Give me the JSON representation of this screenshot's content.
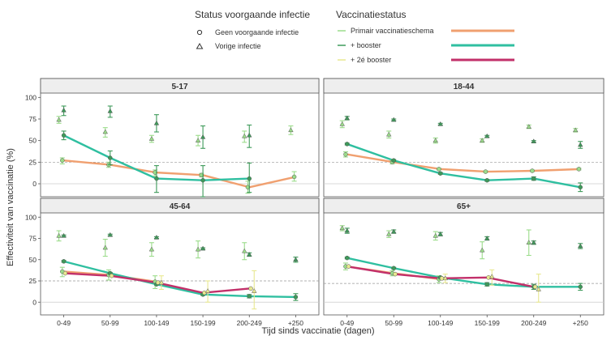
{
  "legend": {
    "status_title": "Status voorgaande infectie",
    "status_items": [
      {
        "label": "Geen voorgaande infectie",
        "symbol": "circle"
      },
      {
        "label": "Vorige infectie",
        "symbol": "triangle"
      }
    ],
    "vacc_title": "Vaccinatiestatus",
    "vacc_items": [
      {
        "label": "Primair vaccinatieschema",
        "dot_color": "#9bdc8a",
        "line_color": "#f0a070"
      },
      {
        "label": "+ booster",
        "dot_color": "#3e9a5a",
        "line_color": "#2fbfa0"
      },
      {
        "label": "+ 2é booster",
        "dot_color": "#e8e890",
        "line_color": "#c2306a"
      }
    ]
  },
  "chart_data": {
    "type": "line",
    "ylabel": "Effectiviteit van vaccinatie (%)",
    "xlabel": "Tijd sinds vaccinatie (dagen)",
    "categories": [
      "0-49",
      "50-99",
      "100-149",
      "150-199",
      "200-249",
      "+250"
    ],
    "yticks": [
      0,
      25,
      50,
      75,
      100
    ],
    "ylim": [
      -15,
      105
    ],
    "colors": {
      "primary_line": "#f0a070",
      "primary_point": "#9bdc8a",
      "booster_line": "#2fbfa0",
      "booster_point": "#3e9a5a",
      "booster2_line": "#c2306a",
      "booster2_point": "#e8e890",
      "reference": "#999999"
    },
    "panels": [
      {
        "title": "5-17",
        "reference": 25,
        "series": [
          {
            "status": "primary",
            "infection": "none",
            "values": [
              27,
              22,
              13,
              10,
              -4,
              8
            ],
            "lower": [
              23,
              19,
              9,
              8,
              -11,
              3
            ],
            "upper": [
              30,
              25,
              16,
              12,
              3,
              14
            ]
          },
          {
            "status": "booster",
            "infection": "none",
            "values": [
              56,
              30,
              6,
              4,
              6,
              null
            ],
            "lower": [
              51,
              22,
              -10,
              -15,
              -10,
              null
            ],
            "upper": [
              61,
              38,
              21,
              21,
              24,
              null
            ]
          },
          {
            "status": "primary",
            "infection": "previous",
            "values": [
              74,
              60,
              52,
              50,
              55,
              62
            ],
            "lower": [
              70,
              54,
              48,
              44,
              48,
              57
            ],
            "upper": [
              78,
              65,
              56,
              56,
              61,
              67
            ]
          },
          {
            "status": "booster",
            "infection": "previous",
            "values": [
              85,
              84,
              70,
              54,
              56,
              null
            ],
            "lower": [
              79,
              77,
              60,
              41,
              42,
              null
            ],
            "upper": [
              90,
              90,
              80,
              67,
              68,
              null
            ]
          }
        ]
      },
      {
        "title": "18-44",
        "reference": 25,
        "series": [
          {
            "status": "primary",
            "infection": "none",
            "values": [
              34,
              25,
              17,
              14,
              15,
              17
            ],
            "lower": [
              31,
              23,
              16,
              13,
              14,
              16
            ],
            "upper": [
              37,
              27,
              18,
              15,
              16,
              18
            ]
          },
          {
            "status": "booster",
            "infection": "none",
            "values": [
              46,
              27,
              12,
              4,
              6,
              -4
            ],
            "lower": [
              45,
              26,
              11,
              3,
              4,
              -9
            ],
            "upper": [
              47,
              28,
              13,
              5,
              8,
              1
            ]
          },
          {
            "status": "primary",
            "infection": "previous",
            "values": [
              69,
              57,
              50,
              50,
              66,
              62
            ],
            "lower": [
              65,
              53,
              47,
              48,
              64,
              60
            ],
            "upper": [
              73,
              61,
              53,
              52,
              68,
              64
            ]
          },
          {
            "status": "booster",
            "infection": "previous",
            "values": [
              76,
              74,
              69,
              55,
              49,
              45
            ],
            "lower": [
              74,
              73,
              68,
              54,
              48,
              41
            ],
            "upper": [
              78,
              75,
              70,
              56,
              50,
              49
            ]
          }
        ]
      },
      {
        "title": "45-64",
        "reference": 25,
        "series": [
          {
            "status": "primary",
            "infection": "none",
            "values": [
              36,
              32,
              24,
              null,
              null,
              null
            ],
            "lower": [
              30,
              26,
              16,
              null,
              null,
              null
            ],
            "upper": [
              41,
              38,
              31,
              null,
              null,
              null
            ]
          },
          {
            "status": "booster",
            "infection": "none",
            "values": [
              48,
              34,
              21,
              9,
              7,
              6
            ],
            "lower": [
              47,
              33,
              20,
              8,
              5,
              2
            ],
            "upper": [
              49,
              35,
              22,
              10,
              9,
              10
            ]
          },
          {
            "status": "booster2",
            "infection": "none",
            "values": [
              34,
              31,
              23,
              11,
              16,
              null
            ],
            "lower": [
              null,
              null,
              null,
              null,
              null,
              null
            ],
            "upper": [
              null,
              null,
              null,
              null,
              null,
              null
            ]
          },
          {
            "status": "primary",
            "infection": "previous",
            "values": [
              78,
              64,
              62,
              62,
              60,
              null
            ],
            "lower": [
              72,
              54,
              54,
              52,
              50,
              null
            ],
            "upper": [
              84,
              74,
              70,
              72,
              70,
              null
            ]
          },
          {
            "status": "booster2",
            "infection": "previous",
            "values": [
              null,
              null,
              23,
              13,
              13,
              null
            ],
            "lower": [
              null,
              null,
              15,
              0,
              -8,
              null
            ],
            "upper": [
              null,
              null,
              31,
              25,
              37,
              null
            ]
          },
          {
            "status": "booster",
            "infection": "previous",
            "values": [
              78,
              79,
              76,
              63,
              56,
              50
            ],
            "lower": [
              77,
              78,
              75,
              62,
              54,
              47
            ],
            "upper": [
              79,
              80,
              77,
              64,
              58,
              53
            ]
          }
        ]
      },
      {
        "title": "65+",
        "reference": 22,
        "series": [
          {
            "status": "primary",
            "infection": "none",
            "values": [
              42,
              34,
              27,
              null,
              null,
              null
            ],
            "lower": [
              38,
              31,
              23,
              null,
              null,
              null
            ],
            "upper": [
              46,
              37,
              31,
              null,
              null,
              null
            ]
          },
          {
            "status": "booster",
            "infection": "none",
            "values": [
              52,
              40,
              29,
              21,
              18,
              18
            ],
            "lower": [
              51,
              39,
              28,
              19,
              15,
              14
            ],
            "upper": [
              53,
              41,
              30,
              23,
              21,
              22
            ]
          },
          {
            "status": "booster2",
            "infection": "none",
            "values": [
              42,
              33,
              28,
              29,
              18,
              null
            ],
            "lower": [
              null,
              null,
              null,
              null,
              null,
              null
            ],
            "upper": [
              null,
              null,
              null,
              null,
              null,
              null
            ]
          },
          {
            "status": "primary",
            "infection": "previous",
            "values": [
              87,
              80,
              78,
              61,
              70,
              null
            ],
            "lower": [
              84,
              76,
              73,
              51,
              55,
              null
            ],
            "upper": [
              90,
              84,
              83,
              71,
              85,
              null
            ]
          },
          {
            "status": "booster2",
            "infection": "previous",
            "values": [
              null,
              null,
              28,
              30,
              15,
              null
            ],
            "lower": [
              null,
              null,
              23,
              20,
              0,
              null
            ],
            "upper": [
              null,
              null,
              33,
              38,
              33,
              null
            ]
          },
          {
            "status": "booster",
            "infection": "previous",
            "values": [
              84,
              83,
              80,
              75,
              70,
              66
            ],
            "lower": [
              81,
              81,
              78,
              73,
              68,
              63
            ],
            "upper": [
              87,
              85,
              82,
              77,
              72,
              69
            ]
          }
        ]
      }
    ]
  }
}
